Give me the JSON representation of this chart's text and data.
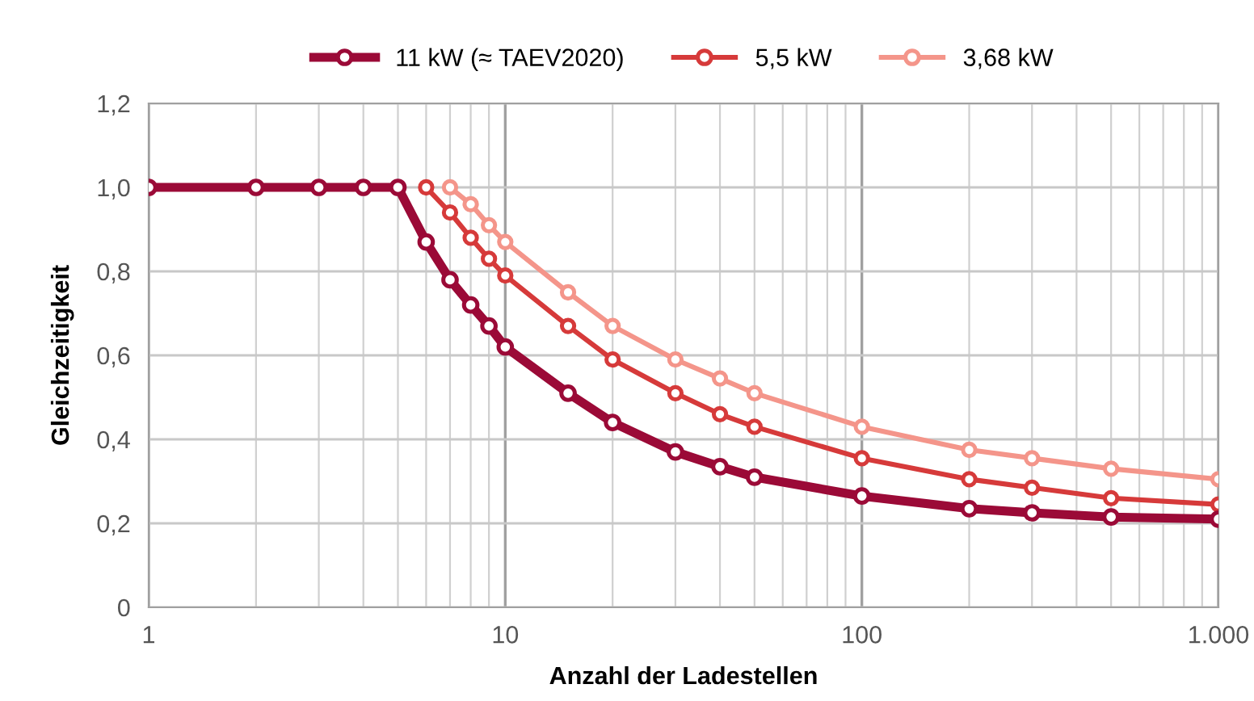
{
  "chart_data": {
    "type": "line",
    "xlabel": "Anzahl der Ladestellen",
    "ylabel": "Gleichzeitigkeit",
    "log": "x",
    "grid": true,
    "legend": "top",
    "marker": "circle",
    "line_style": "solid",
    "xlim": [
      1,
      1000
    ],
    "ylim": [
      0,
      1.2
    ],
    "xticks": [
      1,
      {
        "value": 2,
        "label": null
      },
      {
        "value": 3,
        "label": null
      },
      {
        "value": 4,
        "label": null
      },
      {
        "value": 5,
        "label": null
      },
      {
        "value": 6,
        "label": null
      },
      {
        "value": 7,
        "label": null
      },
      {
        "value": 8,
        "label": null
      },
      {
        "value": 9,
        "label": null
      },
      10,
      {
        "value": 20,
        "label": null
      },
      {
        "value": 30,
        "label": null
      },
      {
        "value": 40,
        "label": null
      },
      {
        "value": 50,
        "label": null
      },
      {
        "value": 60,
        "label": null
      },
      {
        "value": 70,
        "label": null
      },
      {
        "value": 80,
        "label": null
      },
      {
        "value": 90,
        "label": null
      },
      100,
      {
        "value": 200,
        "label": null
      },
      {
        "value": 300,
        "label": null
      },
      {
        "value": 400,
        "label": null
      },
      {
        "value": 500,
        "label": null
      },
      {
        "value": 600,
        "label": null
      },
      {
        "value": 700,
        "label": null
      },
      {
        "value": 800,
        "label": null
      },
      {
        "value": 900,
        "label": null
      },
      {
        "value": 1000,
        "label": "1.000"
      }
    ],
    "yticks": [
      {
        "value": 0,
        "label": "0"
      },
      {
        "value": 0.2,
        "label": "0,2"
      },
      {
        "value": 0.4,
        "label": "0,4"
      },
      {
        "value": 0.6,
        "label": "0,6"
      },
      {
        "value": 0.8,
        "label": "0,8"
      },
      {
        "value": 1.0,
        "label": "1,0"
      },
      {
        "value": 1.2,
        "label": "1,2"
      }
    ],
    "series": [
      {
        "name": "11 kW (≈ TAEV2020)",
        "color": "#9b0a37",
        "x": [
          1,
          2,
          3,
          4,
          5,
          6,
          7,
          8,
          9,
          10,
          15,
          20,
          30,
          40,
          50,
          100,
          200,
          300,
          500,
          1000
        ],
        "values": [
          1.0,
          1.0,
          1.0,
          1.0,
          1.0,
          0.87,
          0.78,
          0.72,
          0.67,
          0.62,
          0.51,
          0.44,
          0.37,
          0.335,
          0.31,
          0.265,
          0.235,
          0.225,
          0.215,
          0.21
        ]
      },
      {
        "name": "5,5 kW",
        "color": "#d63a3a",
        "x": [
          6,
          7,
          8,
          9,
          10,
          15,
          20,
          30,
          40,
          50,
          100,
          200,
          300,
          500,
          1000
        ],
        "values": [
          1.0,
          0.94,
          0.88,
          0.83,
          0.79,
          0.67,
          0.59,
          0.51,
          0.46,
          0.43,
          0.355,
          0.305,
          0.285,
          0.26,
          0.245
        ]
      },
      {
        "name": "3,68 kW",
        "color": "#f4958a",
        "x": [
          7,
          8,
          9,
          10,
          15,
          20,
          30,
          40,
          50,
          100,
          200,
          300,
          500,
          1000
        ],
        "values": [
          1.0,
          0.96,
          0.91,
          0.87,
          0.75,
          0.67,
          0.59,
          0.545,
          0.51,
          0.43,
          0.375,
          0.355,
          0.33,
          0.305
        ]
      }
    ]
  }
}
